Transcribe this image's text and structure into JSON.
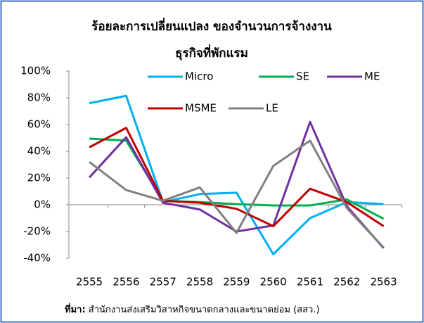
{
  "chart_data": {
    "type": "line",
    "title": [
      "ร้อยละการเปลี่ยนแปลง ของจำนวนการจ้างงาน",
      "ธุรกิจที่พักแรม"
    ],
    "categories": [
      "2555",
      "2556",
      "2557",
      "2558",
      "2559",
      "2560",
      "2561",
      "2562",
      "2563"
    ],
    "series": [
      {
        "name": "Micro",
        "color": "#00b0f0",
        "values": [
          76,
          81.5,
          2,
          8,
          9,
          -37,
          -10,
          2,
          0.5
        ]
      },
      {
        "name": "SE",
        "color": "#00b050",
        "values": [
          49.5,
          48,
          3,
          2,
          0.5,
          -0.5,
          -0.5,
          4,
          -10.5
        ]
      },
      {
        "name": "ME",
        "color": "#7030a0",
        "values": [
          20.5,
          50.5,
          1.5,
          -3.5,
          -20,
          -15.5,
          62,
          -1,
          -32.5
        ]
      },
      {
        "name": "MSME",
        "color": "#c00000",
        "values": [
          43,
          57.5,
          3,
          1.5,
          -3,
          -16,
          12,
          2,
          -16
        ]
      },
      {
        "name": "LE",
        "color": "#808080",
        "values": [
          32,
          11,
          3,
          13,
          -21,
          29,
          48,
          -2.5,
          -32
        ]
      }
    ],
    "ylim": [
      -40,
      100
    ],
    "yticks": [
      {
        "value": -40,
        "label": "-40%"
      },
      {
        "value": -20,
        "label": "-20%"
      },
      {
        "value": 0,
        "label": "0%"
      },
      {
        "value": 20,
        "label": "20%"
      },
      {
        "value": 40,
        "label": "40%"
      },
      {
        "value": 60,
        "label": "60%"
      },
      {
        "value": 80,
        "label": "80%"
      },
      {
        "value": 100,
        "label": "100%"
      }
    ],
    "grid": false,
    "legend": "top-right",
    "source_label": "ที่มา:",
    "source": " สำนักงานส่งเสริมวิสาหกิจขนาดกลางและขนาดย่อม (สสว.)"
  }
}
